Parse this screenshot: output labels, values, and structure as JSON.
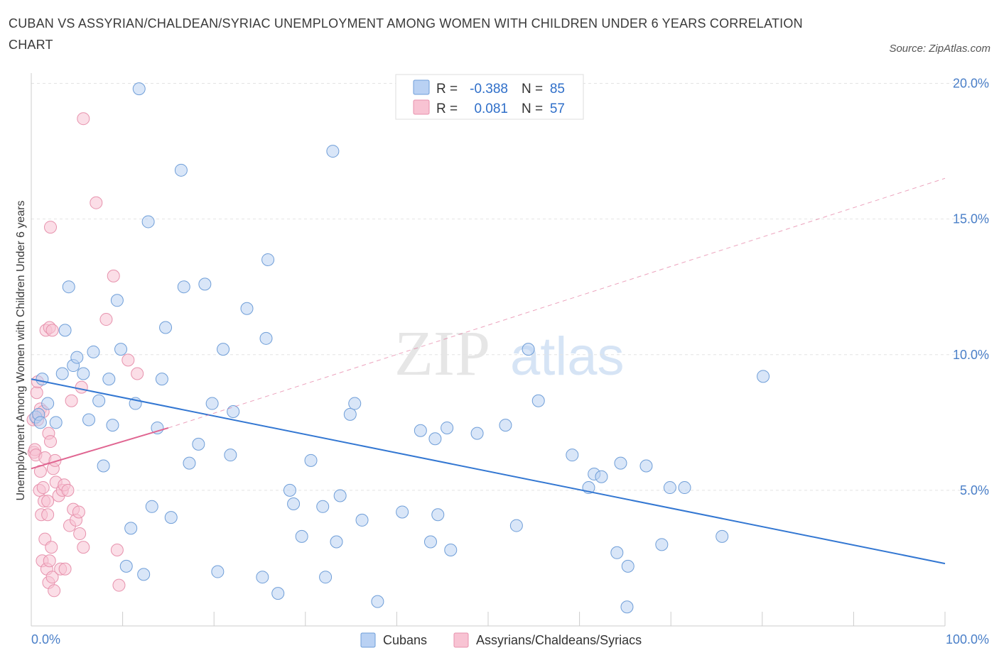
{
  "title": "CUBAN VS ASSYRIAN/CHALDEAN/SYRIAC UNEMPLOYMENT AMONG WOMEN WITH CHILDREN UNDER 6 YEARS CORRELATION CHART",
  "source": "Source: ZipAtlas.com",
  "watermark": "ZIPatlas",
  "legend": {
    "rows": [
      {
        "r_label": "R =",
        "r_value": "-0.388",
        "n_label": "N =",
        "n_value": "85"
      },
      {
        "r_label": "R =",
        "r_value": "0.081",
        "n_label": "N =",
        "n_value": "57"
      }
    ]
  },
  "colors": {
    "cubans_fill": "#b9d1f3",
    "cubans_stroke": "#6f9ed8",
    "cubans_line": "#3377d2",
    "assyrian_fill": "#f8c3d3",
    "assyrian_stroke": "#e792ad",
    "assyrian_line": "#e06591",
    "tick_color": "#4a7fc8"
  },
  "chart_data": {
    "type": "scatter",
    "title": "CUBAN VS ASSYRIAN/CHALDEAN/SYRIAC UNEMPLOYMENT AMONG WOMEN WITH CHILDREN UNDER 6 YEARS CORRELATION CHART",
    "xlabel": "",
    "ylabel": "Unemployment Among Women with Children Under 6 years",
    "xlim": [
      0,
      100
    ],
    "ylim": [
      0,
      20
    ],
    "x_tick_labels": [
      "0.0%",
      "100.0%"
    ],
    "y_ticks": [
      5,
      10,
      15,
      20
    ],
    "y_tick_labels": [
      "5.0%",
      "10.0%",
      "15.0%",
      "20.0%"
    ],
    "grid": "horizontal dashed",
    "legend_position": "top-center",
    "series": [
      {
        "name": "Cubans",
        "r": -0.388,
        "n": 85,
        "trend": {
          "x": [
            0,
            100
          ],
          "y": [
            9.1,
            2.3
          ]
        },
        "points": [
          [
            0.5,
            7.7
          ],
          [
            0.8,
            7.8
          ],
          [
            1.0,
            7.5
          ],
          [
            1.2,
            9.1
          ],
          [
            1.8,
            8.2
          ],
          [
            2.7,
            7.5
          ],
          [
            3.4,
            9.3
          ],
          [
            3.7,
            10.9
          ],
          [
            4.1,
            12.5
          ],
          [
            4.6,
            9.6
          ],
          [
            5.0,
            9.9
          ],
          [
            5.7,
            9.3
          ],
          [
            6.3,
            7.6
          ],
          [
            6.8,
            10.1
          ],
          [
            7.4,
            8.3
          ],
          [
            7.9,
            5.9
          ],
          [
            8.5,
            9.1
          ],
          [
            8.9,
            7.4
          ],
          [
            9.4,
            12.0
          ],
          [
            9.8,
            10.2
          ],
          [
            10.4,
            2.2
          ],
          [
            10.9,
            3.6
          ],
          [
            11.4,
            8.2
          ],
          [
            11.8,
            19.8
          ],
          [
            12.3,
            1.9
          ],
          [
            12.8,
            14.9
          ],
          [
            13.2,
            4.4
          ],
          [
            13.8,
            7.3
          ],
          [
            14.3,
            9.1
          ],
          [
            14.7,
            11.0
          ],
          [
            15.3,
            4.0
          ],
          [
            16.4,
            16.8
          ],
          [
            16.7,
            12.5
          ],
          [
            17.3,
            6.0
          ],
          [
            18.3,
            6.7
          ],
          [
            19.0,
            12.6
          ],
          [
            19.8,
            8.2
          ],
          [
            20.4,
            2.0
          ],
          [
            21.0,
            10.2
          ],
          [
            21.8,
            6.3
          ],
          [
            22.1,
            7.9
          ],
          [
            23.6,
            11.7
          ],
          [
            25.3,
            1.8
          ],
          [
            25.7,
            10.6
          ],
          [
            25.9,
            13.5
          ],
          [
            27.0,
            1.2
          ],
          [
            28.3,
            5.0
          ],
          [
            28.7,
            4.5
          ],
          [
            29.6,
            3.3
          ],
          [
            30.6,
            6.1
          ],
          [
            31.9,
            4.4
          ],
          [
            32.2,
            1.8
          ],
          [
            33.4,
            3.1
          ],
          [
            33.8,
            4.8
          ],
          [
            33.0,
            17.5
          ],
          [
            34.9,
            7.8
          ],
          [
            35.4,
            8.2
          ],
          [
            36.2,
            3.9
          ],
          [
            37.9,
            0.9
          ],
          [
            40.6,
            4.2
          ],
          [
            42.6,
            7.2
          ],
          [
            43.7,
            3.1
          ],
          [
            44.2,
            6.9
          ],
          [
            44.5,
            4.1
          ],
          [
            45.5,
            7.3
          ],
          [
            45.9,
            2.8
          ],
          [
            48.8,
            7.1
          ],
          [
            51.9,
            7.4
          ],
          [
            53.1,
            3.7
          ],
          [
            54.4,
            10.2
          ],
          [
            55.5,
            8.3
          ],
          [
            59.2,
            6.3
          ],
          [
            61.0,
            5.1
          ],
          [
            61.6,
            5.6
          ],
          [
            62.4,
            5.5
          ],
          [
            64.1,
            2.7
          ],
          [
            64.5,
            6.0
          ],
          [
            65.2,
            0.7
          ],
          [
            65.3,
            2.2
          ],
          [
            67.3,
            5.9
          ],
          [
            69.0,
            3.0
          ],
          [
            69.9,
            5.1
          ],
          [
            71.5,
            5.1
          ],
          [
            75.6,
            3.3
          ],
          [
            80.1,
            9.2
          ]
        ]
      },
      {
        "name": "Assyrians/Chaldeans/Syriacs",
        "r": 0.081,
        "n": 57,
        "trend": {
          "x": [
            0,
            15
          ],
          "y": [
            5.8,
            7.3
          ]
        },
        "trend_extension": {
          "x": [
            15,
            100
          ],
          "y": [
            7.3,
            16.5
          ]
        },
        "points": [
          [
            0.2,
            7.6
          ],
          [
            0.3,
            6.4
          ],
          [
            0.4,
            6.5
          ],
          [
            0.5,
            6.3
          ],
          [
            0.6,
            8.6
          ],
          [
            0.7,
            9.0
          ],
          [
            0.7,
            7.6
          ],
          [
            0.8,
            7.8
          ],
          [
            0.9,
            5.0
          ],
          [
            1.0,
            8.0
          ],
          [
            1.0,
            5.7
          ],
          [
            1.1,
            4.1
          ],
          [
            1.2,
            2.4
          ],
          [
            1.3,
            5.1
          ],
          [
            1.3,
            7.9
          ],
          [
            1.4,
            4.6
          ],
          [
            1.5,
            6.2
          ],
          [
            1.5,
            3.2
          ],
          [
            1.6,
            10.9
          ],
          [
            1.7,
            2.1
          ],
          [
            1.8,
            4.6
          ],
          [
            1.8,
            4.1
          ],
          [
            1.9,
            7.1
          ],
          [
            1.9,
            1.6
          ],
          [
            2.0,
            2.4
          ],
          [
            2.0,
            11.0
          ],
          [
            2.1,
            14.7
          ],
          [
            2.1,
            6.8
          ],
          [
            2.2,
            2.9
          ],
          [
            2.3,
            10.9
          ],
          [
            2.3,
            1.8
          ],
          [
            2.4,
            5.8
          ],
          [
            2.5,
            1.3
          ],
          [
            2.6,
            6.1
          ],
          [
            2.7,
            5.3
          ],
          [
            3.0,
            4.8
          ],
          [
            3.2,
            2.1
          ],
          [
            3.4,
            5.0
          ],
          [
            3.6,
            5.2
          ],
          [
            3.7,
            2.1
          ],
          [
            4.0,
            5.0
          ],
          [
            4.2,
            3.7
          ],
          [
            4.4,
            8.3
          ],
          [
            4.6,
            4.3
          ],
          [
            4.9,
            3.9
          ],
          [
            5.2,
            4.2
          ],
          [
            5.3,
            3.4
          ],
          [
            5.5,
            8.8
          ],
          [
            5.7,
            2.9
          ],
          [
            5.7,
            18.7
          ],
          [
            7.1,
            15.6
          ],
          [
            9.4,
            2.8
          ],
          [
            9.6,
            1.5
          ],
          [
            10.6,
            9.8
          ],
          [
            11.6,
            9.3
          ],
          [
            9.0,
            12.9
          ],
          [
            8.2,
            11.3
          ]
        ]
      }
    ]
  },
  "bottom_legend": [
    "Cubans",
    "Assyrians/Chaldeans/Syriacs"
  ]
}
